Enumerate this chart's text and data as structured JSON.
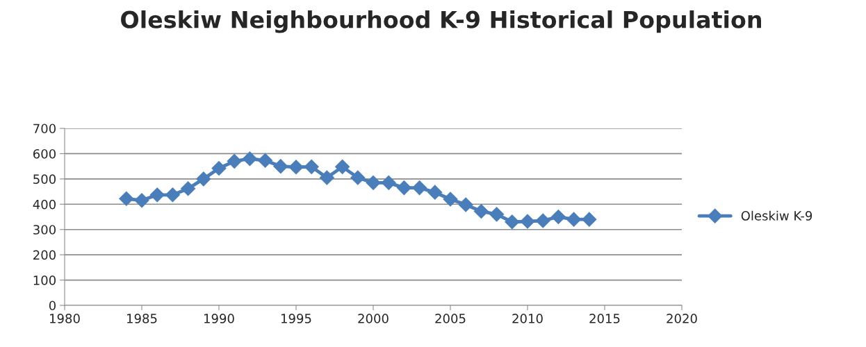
{
  "chart_data": {
    "type": "line",
    "title": "Oleskiw Neighbourhood K-9 Historical Population",
    "x": [
      1984,
      1985,
      1986,
      1987,
      1988,
      1989,
      1990,
      1991,
      1992,
      1993,
      1994,
      1995,
      1996,
      1997,
      1998,
      1999,
      2000,
      2001,
      2002,
      2003,
      2004,
      2005,
      2006,
      2007,
      2008,
      2009,
      2010,
      2011,
      2012,
      2013,
      2014
    ],
    "series": [
      {
        "name": "Oleskiw K-9",
        "color": "#4a7ebb",
        "values": [
          422,
          415,
          437,
          437,
          462,
          500,
          542,
          570,
          580,
          573,
          550,
          547,
          548,
          505,
          548,
          505,
          485,
          485,
          465,
          465,
          447,
          420,
          398,
          372,
          360,
          330,
          332,
          335,
          350,
          340,
          340
        ]
      }
    ],
    "xlim": [
      1980,
      2020
    ],
    "xticks": [
      1980,
      1985,
      1990,
      1995,
      2000,
      2005,
      2010,
      2015,
      2020
    ],
    "ylim": [
      0,
      700
    ],
    "yticks": [
      0,
      100,
      200,
      300,
      400,
      500,
      600,
      700
    ],
    "grid": "y",
    "legend": "right",
    "marker": "diamond",
    "line_style": "solid"
  }
}
